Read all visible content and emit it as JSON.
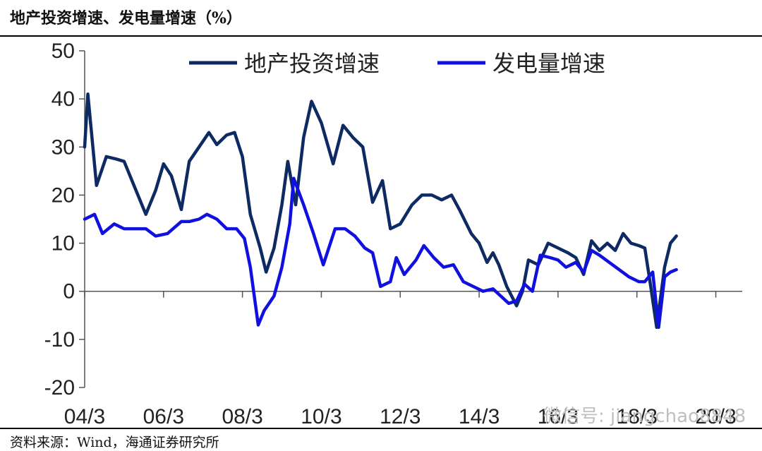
{
  "header": {
    "title": "地产投资增速、发电量增速（%）"
  },
  "footer": {
    "source": "资料来源：Wind，海通证券研究所"
  },
  "watermark": {
    "text": "微信号: jiangchao8848"
  },
  "chart_data": {
    "type": "line",
    "title": "地产投资增速、发电量增速（%）",
    "ylim": [
      -20,
      50
    ],
    "y_ticks": [
      -20,
      -10,
      0,
      10,
      20,
      30,
      40,
      50
    ],
    "x_range": [
      2004.0,
      2020.67
    ],
    "x_ticks": [
      {
        "x": 2004.0,
        "label": "04/3"
      },
      {
        "x": 2006.0,
        "label": "06/3"
      },
      {
        "x": 2008.0,
        "label": "08/3"
      },
      {
        "x": 2010.0,
        "label": "10/3"
      },
      {
        "x": 2012.0,
        "label": "12/3"
      },
      {
        "x": 2014.0,
        "label": "14/3"
      },
      {
        "x": 2016.0,
        "label": "16/3"
      },
      {
        "x": 2018.0,
        "label": "18/3"
      },
      {
        "x": 2020.0,
        "label": "20/3"
      }
    ],
    "grid": false,
    "legend": "top",
    "series": [
      {
        "name": "地产投资增速",
        "color": "#0d2a63",
        "points": [
          [
            2004.0,
            30
          ],
          [
            2004.08,
            41
          ],
          [
            2004.3,
            22
          ],
          [
            2004.55,
            28
          ],
          [
            2004.8,
            27.5
          ],
          [
            2005.0,
            27
          ],
          [
            2005.3,
            21
          ],
          [
            2005.55,
            16
          ],
          [
            2005.8,
            21
          ],
          [
            2006.0,
            26.5
          ],
          [
            2006.2,
            24
          ],
          [
            2006.45,
            17
          ],
          [
            2006.65,
            27
          ],
          [
            2006.9,
            30
          ],
          [
            2007.15,
            33
          ],
          [
            2007.35,
            30.5
          ],
          [
            2007.6,
            32.5
          ],
          [
            2007.8,
            33
          ],
          [
            2008.0,
            28
          ],
          [
            2008.2,
            16
          ],
          [
            2008.45,
            9
          ],
          [
            2008.6,
            4
          ],
          [
            2008.8,
            9
          ],
          [
            2009.0,
            18
          ],
          [
            2009.15,
            27
          ],
          [
            2009.35,
            18
          ],
          [
            2009.55,
            32
          ],
          [
            2009.75,
            39.5
          ],
          [
            2010.0,
            35
          ],
          [
            2010.3,
            26.5
          ],
          [
            2010.55,
            34.5
          ],
          [
            2010.8,
            32
          ],
          [
            2011.05,
            30
          ],
          [
            2011.3,
            18.5
          ],
          [
            2011.55,
            23
          ],
          [
            2011.75,
            13
          ],
          [
            2012.0,
            14
          ],
          [
            2012.3,
            18
          ],
          [
            2012.55,
            20
          ],
          [
            2012.8,
            20
          ],
          [
            2013.05,
            19
          ],
          [
            2013.3,
            20
          ],
          [
            2013.5,
            17
          ],
          [
            2013.8,
            12
          ],
          [
            2014.0,
            10
          ],
          [
            2014.2,
            6
          ],
          [
            2014.35,
            8
          ],
          [
            2014.5,
            5.5
          ],
          [
            2014.7,
            1
          ],
          [
            2014.95,
            -3
          ],
          [
            2015.1,
            0
          ],
          [
            2015.25,
            6.5
          ],
          [
            2015.5,
            5.5
          ],
          [
            2015.75,
            10
          ],
          [
            2016.0,
            9
          ],
          [
            2016.25,
            8
          ],
          [
            2016.45,
            7
          ],
          [
            2016.65,
            3.5
          ],
          [
            2016.85,
            10.5
          ],
          [
            2017.05,
            8.5
          ],
          [
            2017.25,
            10
          ],
          [
            2017.45,
            8.5
          ],
          [
            2017.65,
            12
          ],
          [
            2017.85,
            10
          ],
          [
            2018.05,
            9.5
          ],
          [
            2018.2,
            9
          ],
          [
            2018.35,
            1
          ],
          [
            2018.5,
            -7.5
          ],
          [
            2018.7,
            5
          ],
          [
            2018.85,
            10
          ],
          [
            2019.0,
            11.5
          ]
        ]
      },
      {
        "name": "发电量增速",
        "color": "#1010e0",
        "points": [
          [
            2004.0,
            15
          ],
          [
            2004.25,
            16
          ],
          [
            2004.45,
            12
          ],
          [
            2004.75,
            14
          ],
          [
            2005.0,
            13
          ],
          [
            2005.3,
            13
          ],
          [
            2005.55,
            13
          ],
          [
            2005.8,
            11.5
          ],
          [
            2006.1,
            12
          ],
          [
            2006.45,
            14.5
          ],
          [
            2006.65,
            14.5
          ],
          [
            2006.9,
            15
          ],
          [
            2007.1,
            16
          ],
          [
            2007.35,
            15
          ],
          [
            2007.6,
            13
          ],
          [
            2007.85,
            13
          ],
          [
            2008.05,
            11
          ],
          [
            2008.2,
            5
          ],
          [
            2008.4,
            -7
          ],
          [
            2008.55,
            -4
          ],
          [
            2008.8,
            -1
          ],
          [
            2009.0,
            5
          ],
          [
            2009.2,
            14
          ],
          [
            2009.3,
            23.5
          ],
          [
            2009.55,
            18
          ],
          [
            2009.8,
            12
          ],
          [
            2010.05,
            5.5
          ],
          [
            2010.35,
            13
          ],
          [
            2010.6,
            13
          ],
          [
            2010.85,
            11.5
          ],
          [
            2011.1,
            9
          ],
          [
            2011.3,
            8
          ],
          [
            2011.5,
            1
          ],
          [
            2011.75,
            2
          ],
          [
            2011.9,
            7
          ],
          [
            2012.1,
            3.5
          ],
          [
            2012.4,
            6.5
          ],
          [
            2012.6,
            9.5
          ],
          [
            2012.85,
            7
          ],
          [
            2013.1,
            5
          ],
          [
            2013.35,
            5.5
          ],
          [
            2013.6,
            2
          ],
          [
            2013.85,
            1
          ],
          [
            2014.1,
            0
          ],
          [
            2014.35,
            0.5
          ],
          [
            2014.55,
            -1
          ],
          [
            2014.75,
            -2.5
          ],
          [
            2014.95,
            -2
          ],
          [
            2015.15,
            1.5
          ],
          [
            2015.35,
            0
          ],
          [
            2015.55,
            7.5
          ],
          [
            2015.8,
            7
          ],
          [
            2016.0,
            6.5
          ],
          [
            2016.2,
            5
          ],
          [
            2016.45,
            6
          ],
          [
            2016.65,
            4
          ],
          [
            2016.85,
            8.5
          ],
          [
            2017.05,
            7.5
          ],
          [
            2017.3,
            6
          ],
          [
            2017.55,
            4.5
          ],
          [
            2017.8,
            3
          ],
          [
            2018.05,
            2
          ],
          [
            2018.2,
            2
          ],
          [
            2018.4,
            4
          ],
          [
            2018.55,
            -7.5
          ],
          [
            2018.7,
            3
          ],
          [
            2018.85,
            4
          ],
          [
            2019.0,
            4.5
          ]
        ]
      }
    ]
  }
}
